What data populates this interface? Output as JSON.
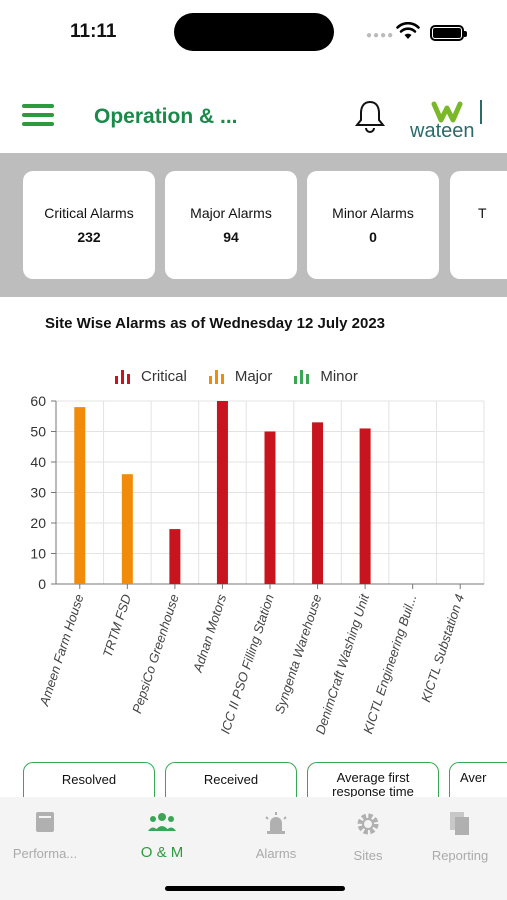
{
  "status": {
    "time": "11:11"
  },
  "header": {
    "title": "Operation & ...",
    "logo_text": "wateen"
  },
  "kpis": [
    {
      "label": "Critical Alarms",
      "value": "232"
    },
    {
      "label": "Major Alarms",
      "value": "94"
    },
    {
      "label": "Minor Alarms",
      "value": "0"
    },
    {
      "label": "T",
      "value": ""
    }
  ],
  "chart_title": "Site Wise Alarms as of Wednesday 12 July 2023",
  "chart_data": {
    "type": "bar",
    "categories": [
      "Ameen Farm House",
      "TRTM FSD",
      "PepsiCo Greenhouse",
      "Adnan Motors",
      "ICC II PSO Filling Station",
      "Syngenta Warehouse",
      "DenimCraft Washing Unit",
      "KICTL Engineering Buil...",
      "KICTL Substation 4"
    ],
    "series": [
      {
        "name": "Critical",
        "values": [
          0,
          0,
          18,
          60,
          50,
          53,
          51,
          0,
          0
        ]
      },
      {
        "name": "Major",
        "values": [
          58,
          36,
          0,
          0,
          0,
          0,
          0,
          0,
          0
        ]
      },
      {
        "name": "Minor",
        "values": [
          0,
          0,
          0,
          0,
          0,
          0,
          0,
          0,
          0
        ]
      }
    ],
    "y_ticks": [
      "0",
      "10",
      "20",
      "30",
      "40",
      "50",
      "60"
    ],
    "ylim": [
      0,
      60
    ],
    "colors": {
      "Critical": "#c8141e",
      "Major": "#f08c0a",
      "Minor": "#3aa655"
    },
    "grid": true,
    "legend": "top"
  },
  "bottom_cards": [
    {
      "line1": "Resolved",
      "line2": ""
    },
    {
      "line1": "Received",
      "line2": ""
    },
    {
      "line1": "Average first",
      "line2": "response time"
    },
    {
      "line1": "Aver",
      "line2": ""
    }
  ],
  "tabs": [
    {
      "label": "Performa...",
      "icon": "book-icon",
      "active": false
    },
    {
      "label": "O & M",
      "icon": "team-icon",
      "active": true
    },
    {
      "label": "Alarms",
      "icon": "siren-icon",
      "active": false
    },
    {
      "label": "Sites",
      "icon": "gear-icon",
      "active": false
    },
    {
      "label": "Reporting",
      "icon": "documents-icon",
      "active": false
    }
  ]
}
